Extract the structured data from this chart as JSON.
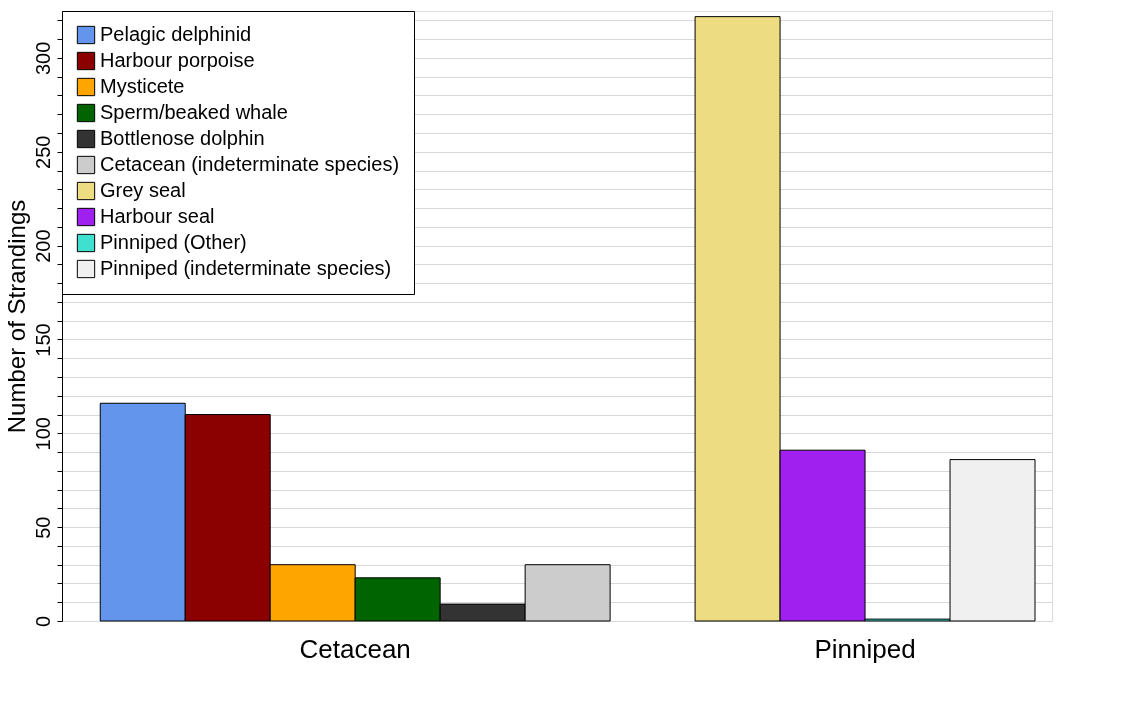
{
  "chart_data": {
    "type": "bar",
    "ylabel": "Number of Strandings",
    "categories": [
      "Cetacean",
      "Pinniped"
    ],
    "series": [
      {
        "name": "Pelagic delphinid",
        "color": "#6495ed",
        "values": [
          116,
          null
        ]
      },
      {
        "name": "Harbour porpoise",
        "color": "#8b0000",
        "values": [
          110,
          null
        ]
      },
      {
        "name": "Mysticete",
        "color": "#ffa500",
        "values": [
          30,
          null
        ]
      },
      {
        "name": "Sperm/beaked whale",
        "color": "#006400",
        "values": [
          23,
          null
        ]
      },
      {
        "name": "Bottlenose dolphin",
        "color": "#333333",
        "values": [
          9,
          null
        ]
      },
      {
        "name": "Cetacean (indeterminate species)",
        "color": "#cccccc",
        "values": [
          30,
          null
        ]
      },
      {
        "name": "Grey seal",
        "color": "#eedc82",
        "values": [
          null,
          322
        ]
      },
      {
        "name": "Harbour seal",
        "color": "#a020f0",
        "values": [
          null,
          91
        ]
      },
      {
        "name": "Pinniped (Other)",
        "color": "#40e0d0",
        "values": [
          null,
          1
        ]
      },
      {
        "name": "Pinniped (indeterminate species)",
        "color": "#f0f0f0",
        "values": [
          null,
          86
        ]
      }
    ],
    "ylim": [
      0,
      325
    ],
    "yticks": [
      0,
      {
        "value": 10,
        "label": null
      },
      {
        "value": 20,
        "label": null
      },
      {
        "value": 30,
        "label": null
      },
      {
        "value": 40,
        "label": null
      },
      50,
      {
        "value": 60,
        "label": null
      },
      {
        "value": 70,
        "label": null
      },
      {
        "value": 80,
        "label": null
      },
      {
        "value": 90,
        "label": null
      },
      100,
      {
        "value": 110,
        "label": null
      },
      {
        "value": 120,
        "label": null
      },
      {
        "value": 130,
        "label": null
      },
      {
        "value": 140,
        "label": null
      },
      150,
      {
        "value": 160,
        "label": null
      },
      {
        "value": 170,
        "label": null
      },
      {
        "value": 180,
        "label": null
      },
      {
        "value": 190,
        "label": null
      },
      200,
      {
        "value": 210,
        "label": null
      },
      {
        "value": 220,
        "label": null
      },
      {
        "value": 230,
        "label": null
      },
      {
        "value": 240,
        "label": null
      },
      250,
      {
        "value": 260,
        "label": null
      },
      {
        "value": 270,
        "label": null
      },
      {
        "value": 280,
        "label": null
      },
      {
        "value": 290,
        "label": null
      },
      300,
      {
        "value": 310,
        "label": null
      },
      {
        "value": 320,
        "label": null
      }
    ],
    "grid": "y",
    "legend": "top left"
  }
}
